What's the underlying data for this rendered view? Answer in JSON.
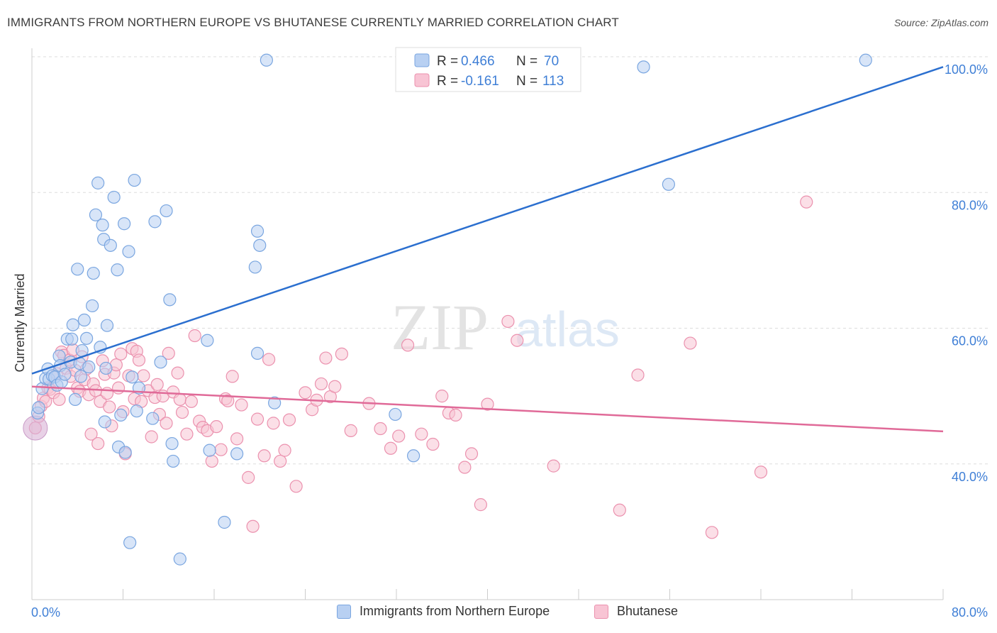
{
  "header": {
    "title": "IMMIGRANTS FROM NORTHERN EUROPE VS BHUTANESE CURRENTLY MARRIED CORRELATION CHART",
    "source": "Source: ZipAtlas.com"
  },
  "watermark": {
    "zip": "ZIP",
    "atlas": "atlas"
  },
  "colors": {
    "blue_fill": "#b8d0f2",
    "blue_stroke": "#7aa6e0",
    "blue_line": "#2b6fcf",
    "pink_fill": "#f8c4d4",
    "pink_stroke": "#eb91ae",
    "pink_line": "#e06a98",
    "axis_label": "#3f7fd6",
    "grid": "#dddddd"
  },
  "stats_legend": {
    "rows": [
      {
        "r_label": "R = ",
        "r_value": "0.466",
        "n_label": "N = ",
        "n_value": "70"
      },
      {
        "r_label": "R = ",
        "r_value": "-0.161",
        "n_label": "N = ",
        "n_value": "113"
      }
    ]
  },
  "bottom_legend": {
    "items": [
      "Immigrants from Northern Europe",
      "Bhutanese"
    ]
  },
  "chart_data": {
    "type": "scatter",
    "title": "IMMIGRANTS FROM NORTHERN EUROPE VS BHUTANESE CURRENTLY MARRIED CORRELATION CHART",
    "xlabel": "",
    "ylabel": "Currently Married",
    "xlim": [
      0,
      80
    ],
    "ylim": [
      20,
      100
    ],
    "x_tick_labels": [
      "0.0%",
      "80.0%"
    ],
    "y_ticks": [
      40,
      60,
      80,
      100
    ],
    "y_tick_labels": [
      "40.0%",
      "60.0%",
      "80.0%",
      "100.0%"
    ],
    "grid": true,
    "legend_position": "top-center",
    "series": [
      {
        "name": "Immigrants from Northern Europe",
        "R": 0.466,
        "N": 70,
        "trend": {
          "x": [
            0,
            80
          ],
          "y": [
            53.3,
            98.5
          ]
        },
        "points": [
          [
            0.5,
            47.5
          ],
          [
            0.6,
            48.3
          ],
          [
            0.9,
            51.1
          ],
          [
            1.2,
            52.6
          ],
          [
            1.4,
            54
          ],
          [
            1.5,
            52.5
          ],
          [
            1.8,
            53
          ],
          [
            2.0,
            52.8
          ],
          [
            2.2,
            51.6
          ],
          [
            2.4,
            55.9
          ],
          [
            2.5,
            54.5
          ],
          [
            2.6,
            52.1
          ],
          [
            2.9,
            53.2
          ],
          [
            3.1,
            58.4
          ],
          [
            3.4,
            55.0
          ],
          [
            3.5,
            58.4
          ],
          [
            3.6,
            60.5
          ],
          [
            3.8,
            49.5
          ],
          [
            4.0,
            68.7
          ],
          [
            4.2,
            54.8
          ],
          [
            4.3,
            52.9
          ],
          [
            4.4,
            56.7
          ],
          [
            4.6,
            61.2
          ],
          [
            4.8,
            58.5
          ],
          [
            5.0,
            54.3
          ],
          [
            5.3,
            63.3
          ],
          [
            5.4,
            68.1
          ],
          [
            5.6,
            76.7
          ],
          [
            5.8,
            81.4
          ],
          [
            6.0,
            57.2
          ],
          [
            6.2,
            75.2
          ],
          [
            6.3,
            73.1
          ],
          [
            6.4,
            46.2
          ],
          [
            6.5,
            54.1
          ],
          [
            6.6,
            60.4
          ],
          [
            6.9,
            72.2
          ],
          [
            7.2,
            79.3
          ],
          [
            7.5,
            68.6
          ],
          [
            7.6,
            42.5
          ],
          [
            7.8,
            47.2
          ],
          [
            8.1,
            75.4
          ],
          [
            8.2,
            41.7
          ],
          [
            8.5,
            71.3
          ],
          [
            8.6,
            28.4
          ],
          [
            8.8,
            52.8
          ],
          [
            9.0,
            81.8
          ],
          [
            9.2,
            47.8
          ],
          [
            9.4,
            51.2
          ],
          [
            10.6,
            46.7
          ],
          [
            10.8,
            75.7
          ],
          [
            11.3,
            55.0
          ],
          [
            11.8,
            77.3
          ],
          [
            12.1,
            64.2
          ],
          [
            12.3,
            43.0
          ],
          [
            12.4,
            40.4
          ],
          [
            13.0,
            26.0
          ],
          [
            15.4,
            58.2
          ],
          [
            15.6,
            42.0
          ],
          [
            19.6,
            69.0
          ],
          [
            19.8,
            74.3
          ],
          [
            20.0,
            72.2
          ],
          [
            21.3,
            49.0
          ],
          [
            20.6,
            99.5
          ],
          [
            16.9,
            31.4
          ],
          [
            19.8,
            56.3
          ],
          [
            31.9,
            47.3
          ],
          [
            53.7,
            98.5
          ],
          [
            55.9,
            81.2
          ],
          [
            73.2,
            99.5
          ],
          [
            33.5,
            41.2
          ],
          [
            18.0,
            41.5
          ]
        ]
      },
      {
        "name": "Bhutanese",
        "R": -0.161,
        "N": 113,
        "trend": {
          "x": [
            0,
            80
          ],
          "y": [
            51.4,
            44.8
          ]
        },
        "points": [
          [
            0.3,
            45.3
          ],
          [
            0.6,
            47.0
          ],
          [
            0.8,
            48.5
          ],
          [
            1.0,
            49.7
          ],
          [
            1.2,
            49.2
          ],
          [
            1.4,
            51.2
          ],
          [
            1.6,
            51.0
          ],
          [
            1.9,
            50.5
          ],
          [
            2.2,
            53.3
          ],
          [
            2.4,
            49.5
          ],
          [
            2.6,
            56.5
          ],
          [
            2.8,
            56.0
          ],
          [
            3.0,
            54.1
          ],
          [
            3.3,
            55.3
          ],
          [
            3.4,
            52.9
          ],
          [
            3.6,
            56.8
          ],
          [
            3.8,
            53.8
          ],
          [
            4.0,
            51.2
          ],
          [
            4.2,
            50.7
          ],
          [
            4.4,
            55.8
          ],
          [
            4.6,
            52.4
          ],
          [
            4.8,
            54.0
          ],
          [
            5.0,
            50.2
          ],
          [
            5.2,
            44.4
          ],
          [
            5.4,
            51.8
          ],
          [
            5.6,
            50.8
          ],
          [
            5.8,
            43.0
          ],
          [
            6.0,
            49.2
          ],
          [
            6.2,
            55.2
          ],
          [
            6.4,
            53.2
          ],
          [
            6.6,
            50.4
          ],
          [
            6.8,
            48.4
          ],
          [
            7.0,
            45.6
          ],
          [
            7.2,
            53.4
          ],
          [
            7.4,
            54.6
          ],
          [
            7.6,
            51.2
          ],
          [
            7.8,
            56.2
          ],
          [
            8.0,
            47.7
          ],
          [
            8.2,
            41.5
          ],
          [
            8.5,
            53.0
          ],
          [
            8.8,
            57.0
          ],
          [
            9.0,
            49.6
          ],
          [
            9.2,
            56.6
          ],
          [
            9.4,
            55.3
          ],
          [
            9.6,
            49.2
          ],
          [
            9.8,
            53.0
          ],
          [
            10.2,
            50.8
          ],
          [
            10.5,
            44.0
          ],
          [
            10.8,
            49.8
          ],
          [
            11.0,
            51.7
          ],
          [
            11.2,
            47.3
          ],
          [
            11.5,
            50.0
          ],
          [
            11.8,
            46.0
          ],
          [
            12.0,
            56.3
          ],
          [
            12.4,
            50.6
          ],
          [
            12.8,
            53.4
          ],
          [
            13.0,
            49.5
          ],
          [
            13.2,
            47.6
          ],
          [
            13.6,
            44.4
          ],
          [
            14.0,
            49.2
          ],
          [
            14.3,
            58.9
          ],
          [
            14.7,
            46.3
          ],
          [
            15.0,
            45.4
          ],
          [
            15.4,
            44.9
          ],
          [
            15.8,
            40.4
          ],
          [
            16.2,
            45.5
          ],
          [
            16.6,
            42.1
          ],
          [
            17.0,
            49.6
          ],
          [
            17.2,
            49.3
          ],
          [
            17.6,
            52.9
          ],
          [
            18.0,
            43.7
          ],
          [
            18.4,
            48.7
          ],
          [
            19.0,
            38.0
          ],
          [
            19.4,
            30.8
          ],
          [
            19.8,
            46.6
          ],
          [
            20.4,
            41.2
          ],
          [
            20.8,
            55.4
          ],
          [
            21.2,
            46.0
          ],
          [
            21.8,
            40.4
          ],
          [
            22.2,
            42.0
          ],
          [
            22.6,
            46.5
          ],
          [
            23.2,
            36.7
          ],
          [
            24.0,
            50.5
          ],
          [
            24.6,
            48.0
          ],
          [
            25.0,
            49.4
          ],
          [
            25.4,
            51.8
          ],
          [
            25.8,
            55.6
          ],
          [
            26.2,
            49.9
          ],
          [
            26.6,
            51.4
          ],
          [
            27.2,
            56.2
          ],
          [
            28.0,
            44.9
          ],
          [
            29.6,
            48.9
          ],
          [
            30.6,
            45.2
          ],
          [
            31.5,
            42.3
          ],
          [
            32.2,
            44.1
          ],
          [
            33.0,
            57.5
          ],
          [
            34.2,
            44.4
          ],
          [
            35.2,
            42.9
          ],
          [
            36.0,
            50.0
          ],
          [
            36.6,
            47.5
          ],
          [
            37.2,
            47.2
          ],
          [
            38.0,
            39.5
          ],
          [
            38.6,
            41.5
          ],
          [
            39.4,
            34.0
          ],
          [
            40.0,
            48.8
          ],
          [
            41.8,
            61.0
          ],
          [
            42.6,
            58.2
          ],
          [
            45.8,
            39.7
          ],
          [
            51.6,
            33.2
          ],
          [
            53.2,
            53.1
          ],
          [
            57.8,
            57.8
          ],
          [
            59.7,
            29.9
          ],
          [
            64.0,
            38.8
          ],
          [
            68.0,
            78.6
          ]
        ]
      }
    ]
  }
}
